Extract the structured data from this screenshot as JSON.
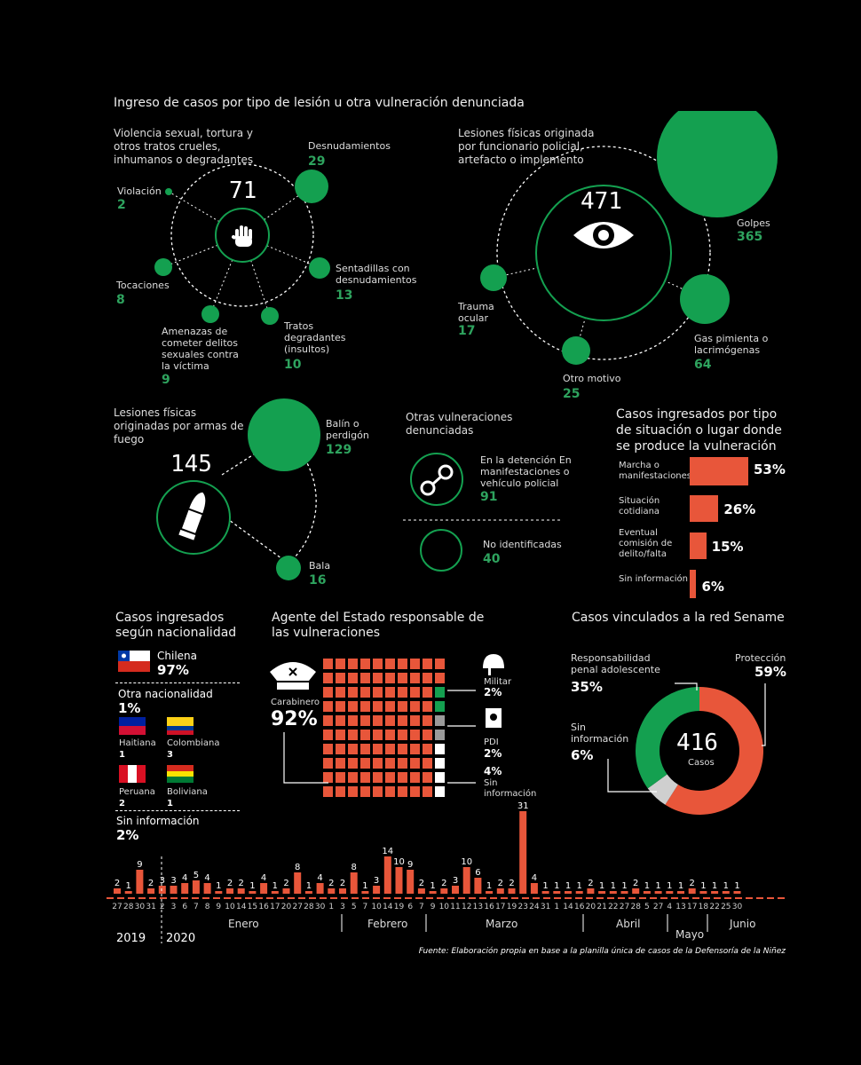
{
  "colors": {
    "green": "#14a050",
    "red": "#e8563a",
    "grey": "#9a9a9a",
    "white": "#ffffff"
  },
  "main_title": "Ingreso de casos por tipo de lesión u otra vulneración denunciada",
  "sexual": {
    "title": "Violencia sexual, tortura y otros tratos crueles, inhumanos o degradantes",
    "total": "71",
    "icon": "hand-stop-icon",
    "items": [
      {
        "label": "Violación",
        "value": "2"
      },
      {
        "label": "Desnudamientos",
        "value": "29"
      },
      {
        "label": "Sentadillas con desnudamientos",
        "value": "13"
      },
      {
        "label": "Tratos degradantes (insultos)",
        "value": "10"
      },
      {
        "label": "Amenazas de cometer delitos sexuales contra la víctima",
        "value": "9"
      },
      {
        "label": "Tocaciones",
        "value": "8"
      }
    ]
  },
  "police": {
    "title": "Lesiones físicas originada por funcionario policial, artefacto o implemento",
    "total": "471",
    "icon": "eye-icon",
    "items": [
      {
        "label": "Golpes",
        "value": "365"
      },
      {
        "label": "Gas pimienta o lacrimógenas",
        "value": "64"
      },
      {
        "label": "Otro motivo",
        "value": "25"
      },
      {
        "label": "Trauma ocular",
        "value": "17"
      }
    ]
  },
  "firearms": {
    "title": "Lesiones físicas originadas por armas de fuego",
    "total": "145",
    "icon": "bullet-icon",
    "items": [
      {
        "label": "Balín o perdigón",
        "value": "129"
      },
      {
        "label": "Bala",
        "value": "16"
      }
    ]
  },
  "other": {
    "title": "Otras vulneraciones denunciadas",
    "icon": "handcuffs-icon",
    "items": [
      {
        "label": "En la detención En manifestaciones o vehículo policial",
        "value": "91"
      },
      {
        "label": "No identificadas",
        "value": "40"
      }
    ]
  },
  "situation": {
    "title": "Casos ingresados por tipo de situación o lugar donde se produce la vulneración",
    "items": [
      {
        "label": "Marcha o manifestaciones",
        "value": 53,
        "display": "53%"
      },
      {
        "label": "Situación cotidiana",
        "value": 26,
        "display": "26%"
      },
      {
        "label": "Eventual comisión de delito/falta",
        "value": 15,
        "display": "15%"
      },
      {
        "label": "Sin información",
        "value": 6,
        "display": "6%"
      }
    ]
  },
  "nationality": {
    "title": "Casos ingresados según nacionalidad",
    "chilena_label": "Chilena",
    "chilena_pct": "97%",
    "otra_label": "Otra nacionalidad",
    "otra_pct": "1%",
    "countries": [
      {
        "label": "Haitiana",
        "value": "1"
      },
      {
        "label": "Colombiana",
        "value": "3"
      },
      {
        "label": "Peruana",
        "value": "2"
      },
      {
        "label": "Boliviana",
        "value": "1"
      }
    ],
    "sin_label": "Sin información",
    "sin_pct": "2%"
  },
  "agent": {
    "title": "Agente del Estado responsable de las vulneraciones",
    "carabinero_label": "Carabinero",
    "carabinero_pct": "92%",
    "militar_label": "Militar",
    "militar_pct": "2%",
    "pdi_label": "PDI",
    "pdi_pct": "2%",
    "sin_label": "Sin información",
    "sin_pct": "4%",
    "grid": {
      "red": 92,
      "green": 2,
      "grey": 2,
      "white": 4
    }
  },
  "sename": {
    "title": "Casos vinculados a la red Sename",
    "total": "416",
    "total_label": "Casos",
    "items": [
      {
        "label": "Protección",
        "value": 59,
        "display": "59%"
      },
      {
        "label": "Responsabilidad penal adolescente",
        "value": 35,
        "display": "35%"
      },
      {
        "label": "Sin información",
        "value": 6,
        "display": "6%"
      }
    ]
  },
  "timeline": {
    "bars": [
      {
        "d": "27",
        "v": 2
      },
      {
        "d": "28",
        "v": 1
      },
      {
        "d": "30",
        "v": 9
      },
      {
        "d": "31",
        "v": 2
      },
      {
        "d": "2",
        "v": 3
      },
      {
        "d": "3",
        "v": 3
      },
      {
        "d": "6",
        "v": 4
      },
      {
        "d": "7",
        "v": 5
      },
      {
        "d": "8",
        "v": 4
      },
      {
        "d": "9",
        "v": 1
      },
      {
        "d": "10",
        "v": 2
      },
      {
        "d": "14",
        "v": 2
      },
      {
        "d": "15",
        "v": 1
      },
      {
        "d": "16",
        "v": 4
      },
      {
        "d": "17",
        "v": 1
      },
      {
        "d": "20",
        "v": 2
      },
      {
        "d": "27",
        "v": 8
      },
      {
        "d": "28",
        "v": 1
      },
      {
        "d": "30",
        "v": 4
      },
      {
        "d": "1",
        "v": 2
      },
      {
        "d": "3",
        "v": 2
      },
      {
        "d": "5",
        "v": 8
      },
      {
        "d": "7",
        "v": 1
      },
      {
        "d": "10",
        "v": 3
      },
      {
        "d": "14",
        "v": 14
      },
      {
        "d": "19",
        "v": 10
      },
      {
        "d": "6",
        "v": 9
      },
      {
        "d": "7",
        "v": 2
      },
      {
        "d": "9",
        "v": 1
      },
      {
        "d": "10",
        "v": 2
      },
      {
        "d": "11",
        "v": 3
      },
      {
        "d": "12",
        "v": 10
      },
      {
        "d": "13",
        "v": 6
      },
      {
        "d": "16",
        "v": 1
      },
      {
        "d": "17",
        "v": 2
      },
      {
        "d": "19",
        "v": 2
      },
      {
        "d": "23",
        "v": 31
      },
      {
        "d": "24",
        "v": 4
      },
      {
        "d": "31",
        "v": 1
      },
      {
        "d": "1",
        "v": 1
      },
      {
        "d": "14",
        "v": 1
      },
      {
        "d": "16",
        "v": 1
      },
      {
        "d": "20",
        "v": 2
      },
      {
        "d": "21",
        "v": 1
      },
      {
        "d": "22",
        "v": 1
      },
      {
        "d": "27",
        "v": 1
      },
      {
        "d": "28",
        "v": 2
      },
      {
        "d": "5",
        "v": 1
      },
      {
        "d": "27",
        "v": 1
      },
      {
        "d": "4",
        "v": 1
      },
      {
        "d": "13",
        "v": 1
      },
      {
        "d": "17",
        "v": 2
      },
      {
        "d": "18",
        "v": 1
      },
      {
        "d": "22",
        "v": 1
      },
      {
        "d": "25",
        "v": 1
      },
      {
        "d": "30",
        "v": 1
      }
    ],
    "months": [
      "Enero",
      "Febrero",
      "Marzo",
      "Abril",
      "Mayo",
      "Junio"
    ],
    "year1": "2019",
    "year2": "2020"
  },
  "source": "Fuente: Elaboración propia en base a la planilla única de casos de la Defensoría de la Niñez"
}
